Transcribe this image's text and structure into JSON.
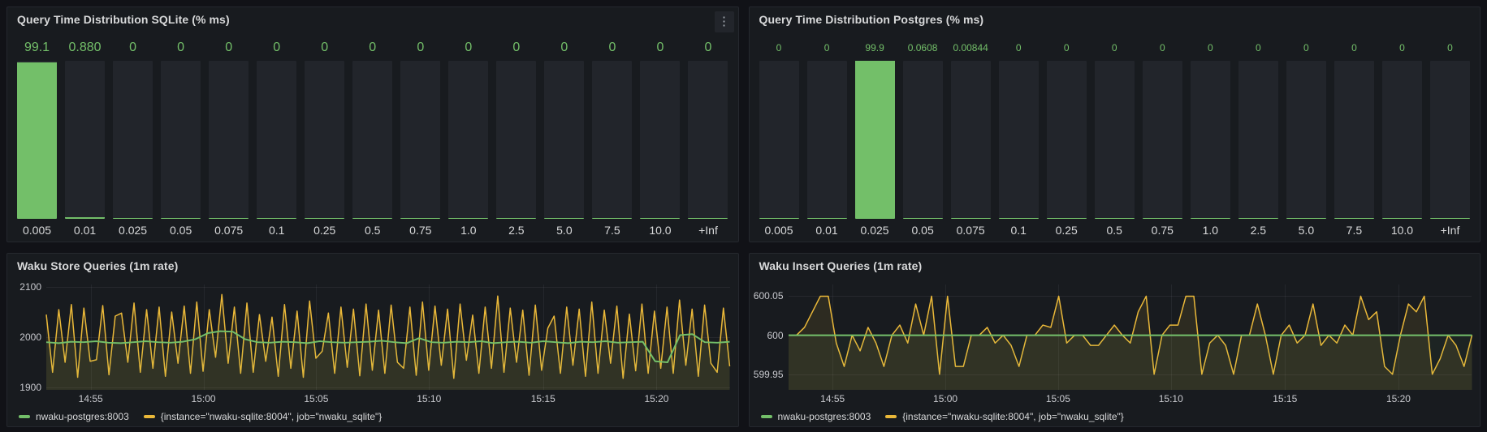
{
  "colors": {
    "green": "#73bf69",
    "yellow": "#eab839",
    "green_fill": "rgba(115,191,105,0.06)",
    "yellow_fill": "rgba(234,184,57,0.10)",
    "panel_bg": "#181b1f",
    "bar_bg": "#22252b"
  },
  "icons": {
    "panel_menu": "⋮"
  },
  "chart_data": [
    {
      "id": "sqlite-histogram",
      "type": "bar",
      "title": "Query Time Distribution SQLite (% ms)",
      "categories": [
        "0.005",
        "0.01",
        "0.025",
        "0.05",
        "0.075",
        "0.1",
        "0.25",
        "0.5",
        "0.75",
        "1.0",
        "2.5",
        "5.0",
        "7.5",
        "10.0",
        "+Inf"
      ],
      "values": [
        99.1,
        0.88,
        0,
        0,
        0,
        0,
        0,
        0,
        0,
        0,
        0,
        0,
        0,
        0,
        0
      ],
      "value_labels": [
        "99.1",
        "0.880",
        "0",
        "0",
        "0",
        "0",
        "0",
        "0",
        "0",
        "0",
        "0",
        "0",
        "0",
        "0",
        "0"
      ],
      "ylim": [
        0,
        100
      ],
      "bar_color": "green"
    },
    {
      "id": "postgres-histogram",
      "type": "bar",
      "title": "Query Time Distribution Postgres (% ms)",
      "categories": [
        "0.005",
        "0.01",
        "0.025",
        "0.05",
        "0.075",
        "0.1",
        "0.25",
        "0.5",
        "0.75",
        "1.0",
        "2.5",
        "5.0",
        "7.5",
        "10.0",
        "+Inf"
      ],
      "values": [
        0,
        0,
        99.9,
        0.0608,
        0.00844,
        0,
        0,
        0,
        0,
        0,
        0,
        0,
        0,
        0,
        0
      ],
      "value_labels": [
        "0",
        "0",
        "99.9",
        "0.0608",
        "0.00844",
        "0",
        "0",
        "0",
        "0",
        "0",
        "0",
        "0",
        "0",
        "0",
        "0"
      ],
      "ylim": [
        0,
        100
      ],
      "bar_color": "green"
    },
    {
      "id": "store-queries",
      "type": "line",
      "title": "Waku Store Queries (1m rate)",
      "ylim": [
        1895,
        2105
      ],
      "y_ticks": [
        2100,
        2000,
        1900
      ],
      "y_tick_labels": [
        "2100",
        "2000",
        "1900"
      ],
      "x_ticks": {
        "labels": [
          "14:55",
          "15:00",
          "15:05",
          "15:10",
          "15:15",
          "15:20"
        ],
        "fractions": [
          0.065,
          0.23,
          0.395,
          0.56,
          0.727,
          0.893
        ]
      },
      "grid": true,
      "legend_position": "bottom",
      "series": [
        {
          "name": "nwaku-postgres:8003",
          "color": "green",
          "values": [
            1990,
            1988,
            1991,
            1990,
            1992,
            1989,
            1988,
            1990,
            1992,
            1990,
            1989,
            1991,
            1996,
            2008,
            2012,
            2011,
            1996,
            1990,
            1989,
            1991,
            1990,
            1988,
            1992,
            1990,
            1989,
            1990,
            1991,
            1993,
            1990,
            1988,
            1998,
            1990,
            1989,
            1991,
            1990,
            1992,
            1988,
            1990,
            1991,
            1989,
            1992,
            1990,
            1988,
            1991,
            1990,
            1992,
            1989,
            1990,
            1991,
            1952,
            1950,
            2004,
            2006,
            1990,
            1989,
            1991
          ]
        },
        {
          "name": "{instance=\"nwaku-sqlite:8004\", job=\"nwaku_sqlite\"}",
          "color": "yellow",
          "values": [
            2045,
            1930,
            2055,
            1950,
            2065,
            1920,
            2058,
            1952,
            1955,
            2063,
            1925,
            2042,
            2048,
            1950,
            2068,
            1930,
            2055,
            1938,
            2060,
            1922,
            2050,
            1948,
            2062,
            1928,
            2070,
            1932,
            2055,
            1960,
            2085,
            1948,
            2060,
            1928,
            2068,
            1930,
            2045,
            1952,
            2040,
            1922,
            2065,
            1938,
            2052,
            1920,
            2072,
            1958,
            1972,
            2048,
            1928,
            2060,
            1940,
            2056,
            1923,
            2066,
            1934,
            2054,
            1928,
            2064,
            1950,
            1938,
            2060,
            1924,
            2070,
            1934,
            2062,
            1944,
            2056,
            1918,
            2066,
            1954,
            2044,
            1928,
            2060,
            1938,
            2082,
            1930,
            2058,
            1950,
            2054,
            1924,
            2064,
            1934,
            2018,
            2042,
            1928,
            2060,
            1944,
            2056,
            1922,
            2070,
            1928,
            2054,
            1948,
            2062,
            1918,
            2046,
            1933,
            2066,
            1928,
            2052,
            1938,
            2060,
            1928,
            2074,
            1944,
            2056,
            1922,
            2064,
            1948,
            1930,
            2058,
            1942
          ]
        }
      ]
    },
    {
      "id": "insert-queries",
      "type": "line",
      "title": "Waku Insert Queries (1m rate)",
      "ylim": [
        599.93,
        600.065
      ],
      "y_ticks": [
        600.05,
        600,
        599.95
      ],
      "y_tick_labels": [
        "600.05",
        "600",
        "599.95"
      ],
      "x_ticks": {
        "labels": [
          "14:55",
          "15:00",
          "15:05",
          "15:10",
          "15:15",
          "15:20"
        ],
        "fractions": [
          0.065,
          0.23,
          0.395,
          0.56,
          0.727,
          0.893
        ]
      },
      "grid": true,
      "legend_position": "bottom",
      "series": [
        {
          "name": "nwaku-postgres:8003",
          "color": "green",
          "values": [
            600,
            600
          ]
        },
        {
          "name": "{instance=\"nwaku-sqlite:8004\", job=\"nwaku_sqlite\"}",
          "color": "yellow",
          "values": [
            600,
            600,
            600.01,
            600.03,
            600.05,
            600.05,
            599.99,
            599.96,
            600,
            599.98,
            600.01,
            599.99,
            599.96,
            600,
            600.013,
            599.99,
            600.04,
            600,
            600.05,
            599.95,
            600.05,
            599.96,
            599.96,
            600,
            600,
            600.01,
            599.99,
            600,
            599.987,
            599.96,
            600,
            600,
            600.013,
            600.01,
            600.05,
            599.99,
            600,
            600,
            599.987,
            599.987,
            600,
            600.013,
            600,
            599.99,
            600.03,
            600.05,
            599.95,
            600,
            600.013,
            600.013,
            600.05,
            600.05,
            599.95,
            599.99,
            600,
            599.987,
            599.95,
            600,
            600,
            600.04,
            600,
            599.95,
            600,
            600.013,
            599.99,
            600,
            600.04,
            599.987,
            600,
            599.99,
            600.013,
            600,
            600.05,
            600.02,
            600.03,
            599.96,
            599.95,
            600,
            600.04,
            600.03,
            600.05,
            599.95,
            599.97,
            600,
            599.987,
            599.96,
            600
          ]
        }
      ]
    }
  ]
}
